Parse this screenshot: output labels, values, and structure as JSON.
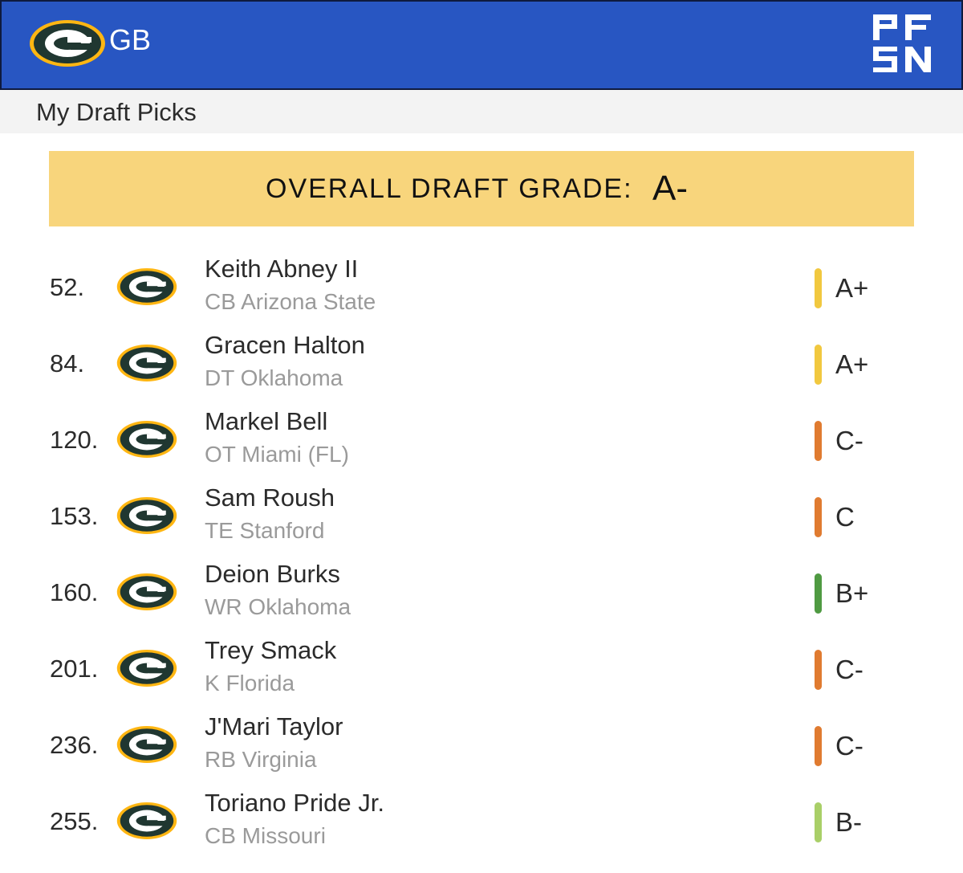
{
  "header": {
    "team_abbr": "GB",
    "team_logo_icon": "packers-g-logo-icon",
    "brand_logo_icon": "pfsn-logo-icon",
    "colors": {
      "header_bg": "#2856c2",
      "logo_green": "#203731",
      "logo_gold": "#ffb612"
    }
  },
  "subheader": {
    "title": "My Draft Picks"
  },
  "overall": {
    "label": "OVERALL DRAFT GRADE:",
    "grade": "A-",
    "banner_color": "#f8d57c"
  },
  "picks": [
    {
      "number": "52.",
      "name": "Keith Abney II",
      "info": "CB Arizona State",
      "grade": "A+",
      "bar_color": "#f1c83f"
    },
    {
      "number": "84.",
      "name": "Gracen Halton",
      "info": "DT Oklahoma",
      "grade": "A+",
      "bar_color": "#f1c83f"
    },
    {
      "number": "120.",
      "name": "Markel Bell",
      "info": "OT Miami (FL)",
      "grade": "C-",
      "bar_color": "#e07b30"
    },
    {
      "number": "153.",
      "name": "Sam Roush",
      "info": "TE Stanford",
      "grade": "C",
      "bar_color": "#e07b30"
    },
    {
      "number": "160.",
      "name": "Deion Burks",
      "info": "WR Oklahoma",
      "grade": "B+",
      "bar_color": "#4f9a42"
    },
    {
      "number": "201.",
      "name": "Trey Smack",
      "info": "K Florida",
      "grade": "C-",
      "bar_color": "#e07b30"
    },
    {
      "number": "236.",
      "name": "J'Mari Taylor",
      "info": "RB Virginia",
      "grade": "C-",
      "bar_color": "#e07b30"
    },
    {
      "number": "255.",
      "name": "Toriano Pride Jr.",
      "info": "CB Missouri",
      "grade": "B-",
      "bar_color": "#a9cf68"
    }
  ]
}
